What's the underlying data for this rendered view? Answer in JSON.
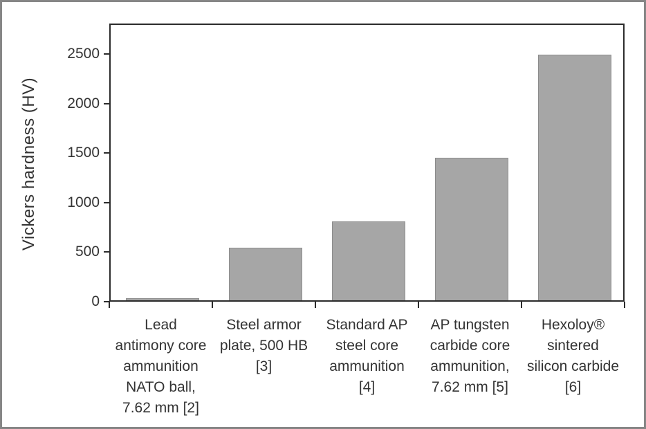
{
  "figure": {
    "background_color": "#ffffff",
    "border_color": "#868686"
  },
  "chart_data": {
    "type": "bar",
    "title": "",
    "xlabel": "",
    "ylabel": "Vickers hardness (HV)",
    "categories": [
      "Lead\nantimony core\nammunition\nNATO ball,\n7.62 mm [2]",
      "Steel armor\nplate, 500 HB\n[3]",
      "Standard AP\nsteel core\nammunition\n[4]",
      "AP tungsten\ncarbide core\nammunition,\n7.62 mm [5]",
      "Hexoloy®\nsintered\nsilicon carbide\n[6]"
    ],
    "values": [
      20,
      530,
      800,
      1440,
      2480
    ],
    "yticks": [
      0,
      500,
      1000,
      1500,
      2000,
      2500
    ],
    "ylim": [
      0,
      2810
    ],
    "grid": false,
    "legend": false,
    "bar_color": "#a6a6a6",
    "bar_border_color": "#8c8c8c",
    "axis_color": "#2b2b2b",
    "text_color": "#333333"
  }
}
